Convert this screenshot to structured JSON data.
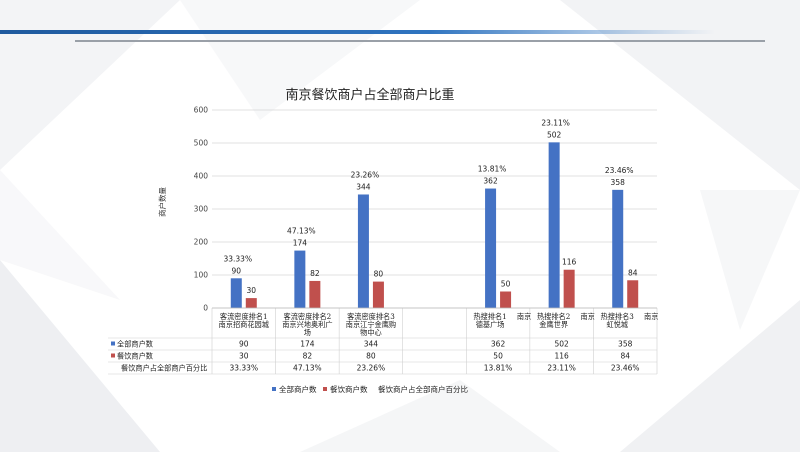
{
  "colors": {
    "total": "#4472c4",
    "dining": "#c0504d",
    "accent": "#2f74c0"
  },
  "chart_data": {
    "type": "bar",
    "title": "南京餐饮商户占全部商户比重",
    "ylabel": "商户数量",
    "ylim": [
      0,
      600
    ],
    "yticks": [
      0,
      100,
      200,
      300,
      400,
      500,
      600
    ],
    "grid": true,
    "legend_position": "bottom",
    "categories": [
      [
        "客流密度排名1",
        "南京招商花园城"
      ],
      [
        "客流密度排名2",
        "南京兴地奥利广",
        "场"
      ],
      [
        "客流密度排名3",
        "南京江宁金鹰购",
        "物中心"
      ],
      [
        ""
      ],
      [
        "热搜排名1",
        "德基广场",
        "南京"
      ],
      [
        "热搜排名2",
        "金鹰世界",
        "南京"
      ],
      [
        "热搜排名3",
        "虹悦城",
        "南京"
      ]
    ],
    "series": [
      {
        "name": "全部商户数",
        "values": [
          90,
          174,
          344,
          null,
          362,
          502,
          358
        ]
      },
      {
        "name": "餐饮商户数",
        "values": [
          30,
          82,
          80,
          null,
          50,
          116,
          84
        ]
      }
    ],
    "ratio_series": {
      "name": "餐饮商户占全部商户百分比",
      "values": [
        "33.33%",
        "47.13%",
        "23.26%",
        "",
        "13.81%",
        "23.11%",
        "23.46%"
      ]
    }
  }
}
